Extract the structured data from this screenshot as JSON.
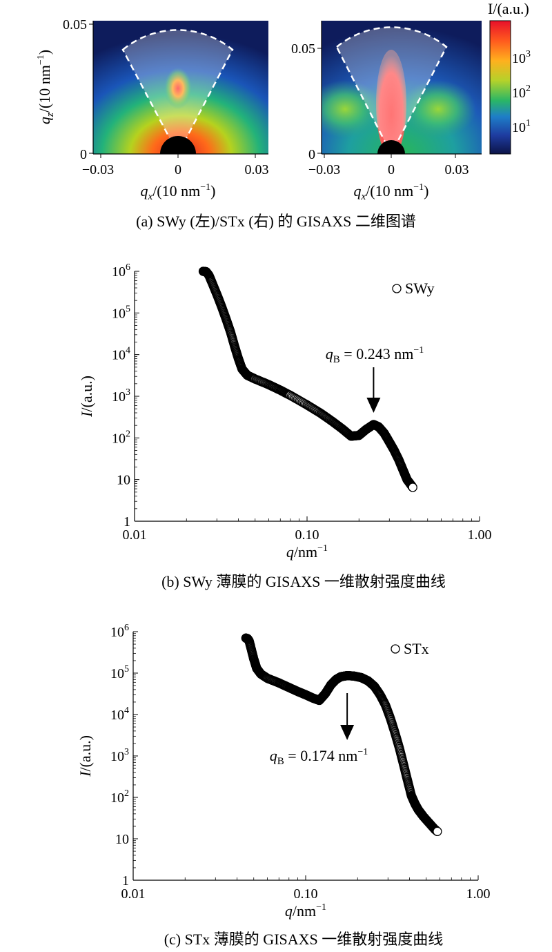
{
  "panel_a": {
    "caption": "(a) SWy (左)/STx (右) 的 GISAXS 二维图谱",
    "colorbar_label": "I/(a.u.)",
    "colorbar_ticks": [
      {
        "base": "10",
        "exp": "3",
        "value": 1000
      },
      {
        "base": "10",
        "exp": "2",
        "value": 100
      },
      {
        "base": "10",
        "exp": "1",
        "value": 10
      }
    ],
    "left_map": {
      "sample": "SWy",
      "xlabel_main": "q",
      "xlabel_sub": "x",
      "xlabel_unit": "/(10 nm",
      "ylabel_main": "q",
      "ylabel_sub": "z",
      "ylabel_unit": "/(10 nm",
      "unit_exp": "−1",
      "unit_close": ")",
      "x_ticks": [
        "−0.03",
        "0",
        "0.03"
      ],
      "y_ticks": [
        "0.05",
        "0"
      ],
      "xlim": [
        -0.03,
        0.03
      ],
      "ylim": [
        0,
        0.05
      ]
    },
    "right_map": {
      "sample": "STx",
      "xlabel_main": "q",
      "xlabel_sub": "x",
      "xlabel_unit": "/(10 nm",
      "unit_exp": "−1",
      "unit_close": ")",
      "x_ticks": [
        "−0.03",
        "0",
        "0.03"
      ],
      "y_ticks": [
        "0.05",
        "0"
      ],
      "xlim": [
        -0.03,
        0.03
      ],
      "ylim": [
        0,
        0.05
      ]
    }
  },
  "chart_data": [
    {
      "type": "scatter",
      "caption": "(b) SWy 薄膜的 GISAXS 一维散射强度曲线",
      "series": [
        {
          "name": "SWy",
          "x": [
            0.025,
            0.026,
            0.027,
            0.028,
            0.03,
            0.032,
            0.034,
            0.036,
            0.038,
            0.04,
            0.042,
            0.045,
            0.05,
            0.06,
            0.07,
            0.08,
            0.1,
            0.12,
            0.14,
            0.16,
            0.18,
            0.2,
            0.22,
            0.243,
            0.26,
            0.28,
            0.3,
            0.32,
            0.34,
            0.36,
            0.38,
            0.4,
            0.41
          ],
          "y": [
            1000000,
            980000,
            800000,
            560000,
            280000,
            140000,
            70000,
            35000,
            16000,
            8000,
            4500,
            3200,
            2600,
            1900,
            1400,
            1050,
            620,
            390,
            250,
            165,
            110,
            115,
            160,
            210,
            185,
            130,
            80,
            50,
            30,
            17,
            10,
            7.5,
            6.5
          ]
        }
      ],
      "xscale": "log",
      "yscale": "log",
      "xlim": [
        0.01,
        1.0
      ],
      "ylim": [
        1,
        1000000
      ],
      "x_ticks": [
        "0.01",
        "0.10",
        "1.00"
      ],
      "y_ticks": [
        "10^6",
        "10^5",
        "10^4",
        "10^3",
        "10^2",
        "10",
        "1"
      ],
      "xlabel": "q/nm−1",
      "ylabel": "I/(a.u.)",
      "legend": "top-right",
      "annotation": {
        "text_main": "q",
        "text_sub": "B",
        "text_value": " = 0.243 nm",
        "text_exp": "−1",
        "x": 0.243,
        "y": 210
      }
    },
    {
      "type": "scatter",
      "caption": "(c) STx 薄膜的 GISAXS 一维散射强度曲线",
      "series": [
        {
          "name": "STx",
          "x": [
            0.045,
            0.046,
            0.047,
            0.048,
            0.05,
            0.052,
            0.055,
            0.06,
            0.07,
            0.08,
            0.09,
            0.1,
            0.11,
            0.12,
            0.13,
            0.14,
            0.15,
            0.16,
            0.174,
            0.19,
            0.21,
            0.23,
            0.25,
            0.27,
            0.29,
            0.31,
            0.33,
            0.35,
            0.37,
            0.39,
            0.41,
            0.43,
            0.45,
            0.48,
            0.52,
            0.56,
            0.58
          ],
          "y": [
            700000,
            680000,
            600000,
            430000,
            220000,
            130000,
            95000,
            75000,
            58000,
            45000,
            36000,
            30000,
            25000,
            22000,
            32000,
            52000,
            70000,
            82000,
            87000,
            85000,
            78000,
            65000,
            48000,
            30000,
            17000,
            8000,
            3500,
            1500,
            600,
            250,
            110,
            70,
            50,
            35,
            24,
            17,
            15
          ]
        }
      ],
      "xscale": "log",
      "yscale": "log",
      "xlim": [
        0.01,
        1.0
      ],
      "ylim": [
        1,
        1000000
      ],
      "x_ticks": [
        "0.01",
        "0.10",
        "1.00"
      ],
      "y_ticks": [
        "10^6",
        "10^5",
        "10^4",
        "10^3",
        "10^2",
        "10",
        "1"
      ],
      "xlabel": "q/nm−1",
      "ylabel": "I/(a.u.)",
      "legend": "top-right",
      "annotation": {
        "text_main": "q",
        "text_sub": "B",
        "text_value": " = 0.174 nm",
        "text_exp": "−1",
        "x": 0.174,
        "y": 87000
      }
    }
  ]
}
